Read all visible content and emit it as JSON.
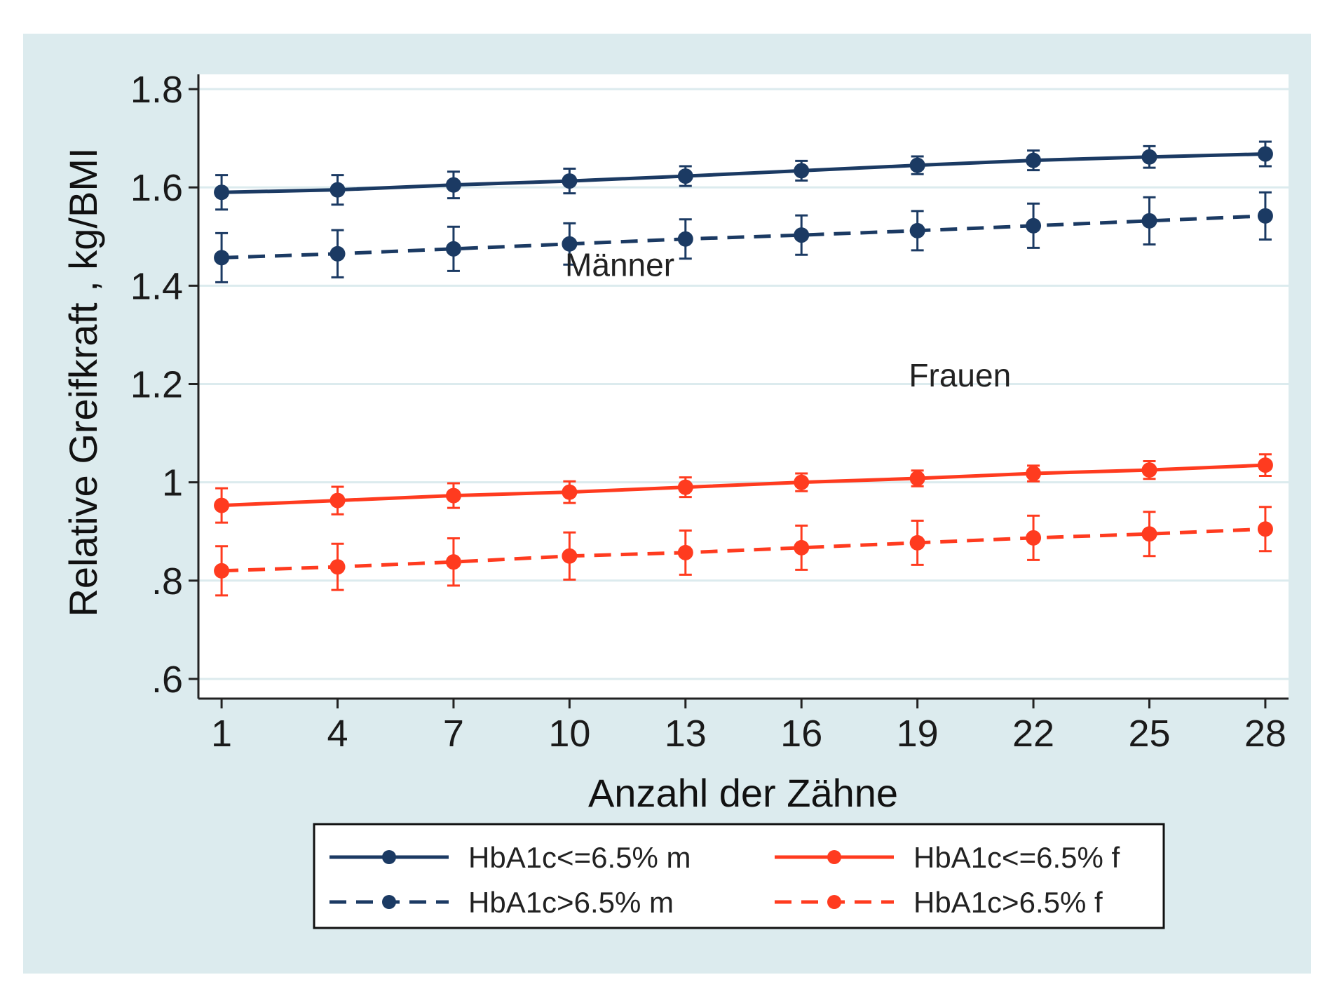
{
  "chart_data": {
    "type": "line",
    "title": "",
    "xlabel": "Anzahl der Zähne",
    "ylabel": "Relative Greifkraft , kg/BMI",
    "x": [
      1,
      4,
      7,
      10,
      13,
      16,
      19,
      22,
      25,
      28
    ],
    "x_ticks": [
      "1",
      "4",
      "7",
      "10",
      "13",
      "16",
      "19",
      "22",
      "25",
      "28"
    ],
    "y_ticks": [
      {
        "value": 0.6,
        "label": ".6"
      },
      {
        "value": 0.8,
        "label": ".8"
      },
      {
        "value": 1.0,
        "label": "1"
      },
      {
        "value": 1.2,
        "label": "1.2"
      },
      {
        "value": 1.4,
        "label": "1.4"
      },
      {
        "value": 1.6,
        "label": "1.6"
      },
      {
        "value": 1.8,
        "label": "1.8"
      }
    ],
    "xlim": [
      0.4,
      28.6
    ],
    "ylim": [
      0.56,
      1.83
    ],
    "grid": "horizontal",
    "legend_position": "bottom",
    "series": [
      {
        "name": "HbA1c<=6.5% m",
        "color": "#1b3a63",
        "dash": "solid",
        "values": [
          1.59,
          1.595,
          1.605,
          1.613,
          1.623,
          1.634,
          1.645,
          1.655,
          1.662,
          1.668
        ],
        "err": [
          0.035,
          0.03,
          0.027,
          0.025,
          0.02,
          0.02,
          0.018,
          0.02,
          0.022,
          0.025
        ]
      },
      {
        "name": "HbA1c>6.5% m",
        "color": "#1b3a63",
        "dash": "dashed",
        "values": [
          1.457,
          1.465,
          1.475,
          1.485,
          1.495,
          1.503,
          1.512,
          1.522,
          1.532,
          1.542
        ],
        "err": [
          0.05,
          0.048,
          0.045,
          0.042,
          0.04,
          0.04,
          0.04,
          0.045,
          0.048,
          0.048
        ]
      },
      {
        "name": "HbA1c<=6.5% f",
        "color": "#ff3b1f",
        "dash": "solid",
        "values": [
          0.953,
          0.963,
          0.973,
          0.98,
          0.99,
          1.0,
          1.008,
          1.018,
          1.025,
          1.035
        ],
        "err": [
          0.035,
          0.028,
          0.025,
          0.022,
          0.02,
          0.018,
          0.016,
          0.016,
          0.018,
          0.022
        ]
      },
      {
        "name": "HbA1c>6.5% f",
        "color": "#ff3b1f",
        "dash": "dashed",
        "values": [
          0.82,
          0.828,
          0.838,
          0.85,
          0.857,
          0.867,
          0.877,
          0.887,
          0.895,
          0.905
        ],
        "err": [
          0.05,
          0.047,
          0.048,
          0.048,
          0.045,
          0.045,
          0.045,
          0.045,
          0.045,
          0.045
        ]
      }
    ],
    "annotations": [
      {
        "text": "Männer",
        "x": 11.3,
        "y": 1.42
      },
      {
        "text": "Frauen",
        "x": 20.1,
        "y": 1.195
      }
    ],
    "legend": {
      "columns": 2
    }
  },
  "colors": {
    "outer_background": "#dcebee",
    "plot_background": "#ffffff",
    "grid": "#dcebee",
    "axis": "#222222"
  }
}
